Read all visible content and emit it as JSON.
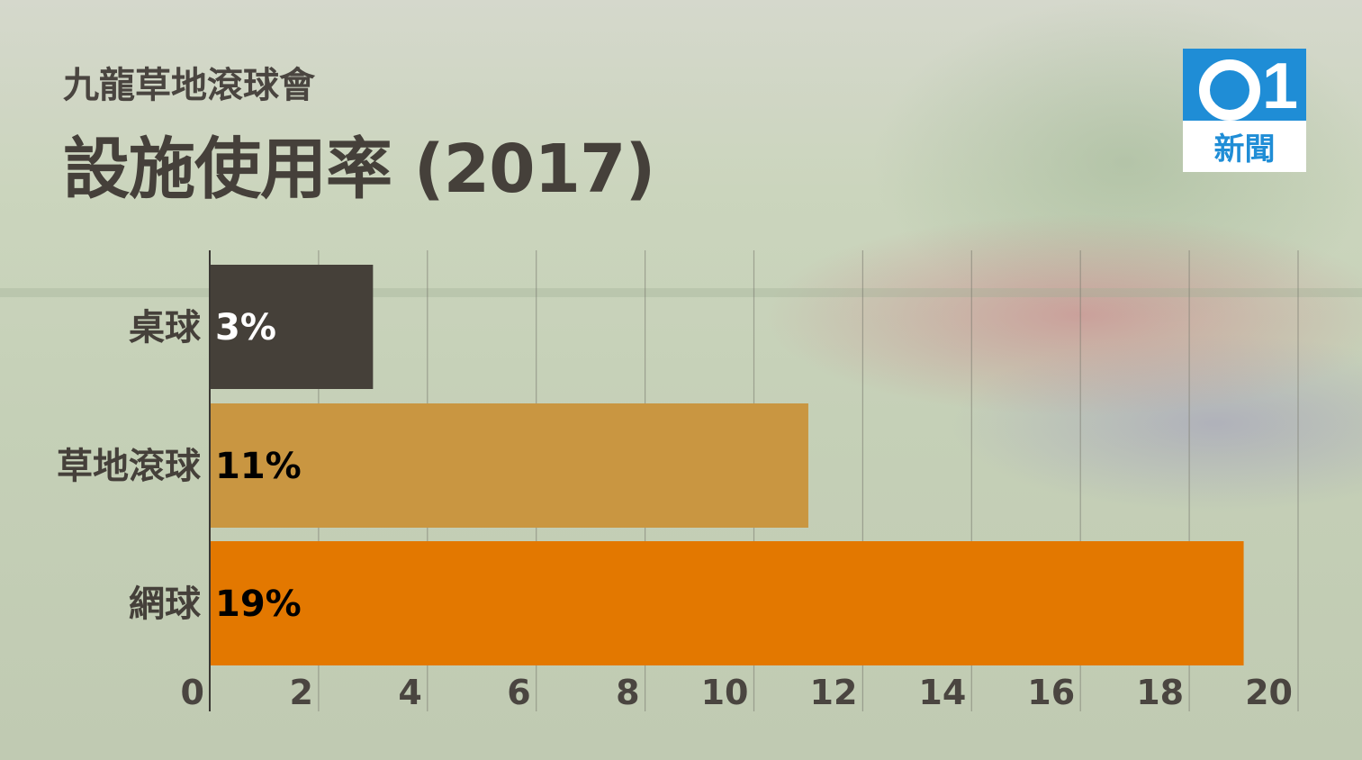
{
  "header": {
    "subtitle": "九龍草地滾球會",
    "title": "設施使用率 (2017)"
  },
  "logo": {
    "text": "新聞",
    "icon": "hk01-logo-icon",
    "brand_color": "#1f8dd6"
  },
  "chart_data": {
    "type": "bar",
    "orientation": "horizontal",
    "title": "設施使用率 (2017)",
    "categories": [
      "桌球",
      "草地滾球",
      "網球"
    ],
    "values": [
      3,
      11,
      19
    ],
    "value_labels": [
      "3%",
      "11%",
      "19%"
    ],
    "bar_colors": [
      "#454039",
      "#c99641",
      "#e37800"
    ],
    "label_colors": [
      "#ffffff",
      "#000000",
      "#000000"
    ],
    "xlim": [
      0,
      20
    ],
    "x_ticks": [
      "0",
      "2",
      "4",
      "6",
      "8",
      "10",
      "12",
      "14",
      "16",
      "18",
      "20"
    ],
    "grid": true,
    "xlabel": "",
    "ylabel": ""
  }
}
